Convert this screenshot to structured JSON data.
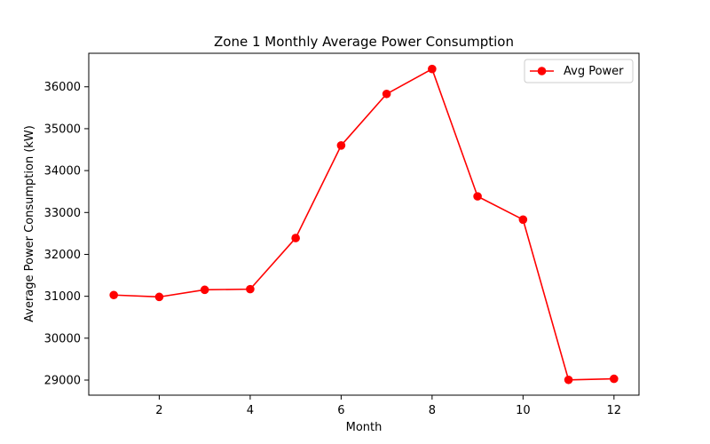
{
  "chart_data": {
    "type": "line",
    "title": "Zone 1 Monthly Average Power Consumption",
    "xlabel": "Month",
    "ylabel": "Average Power Consumption (kW)",
    "x": [
      1,
      2,
      3,
      4,
      5,
      6,
      7,
      8,
      9,
      10,
      11,
      12
    ],
    "series": [
      {
        "name": "Avg Power",
        "color": "#ff0000",
        "values": [
          31030,
          30985,
          31155,
          31170,
          32390,
          34600,
          35830,
          36425,
          33385,
          32830,
          29005,
          29030
        ]
      }
    ],
    "xticks": [
      2,
      4,
      6,
      8,
      10,
      12
    ],
    "yticks": [
      29000,
      30000,
      31000,
      32000,
      33000,
      34000,
      35000,
      36000
    ],
    "xlim": [
      0.45,
      12.55
    ],
    "ylim": [
      28640,
      36800
    ],
    "grid": false,
    "legend_position": "top-right"
  }
}
